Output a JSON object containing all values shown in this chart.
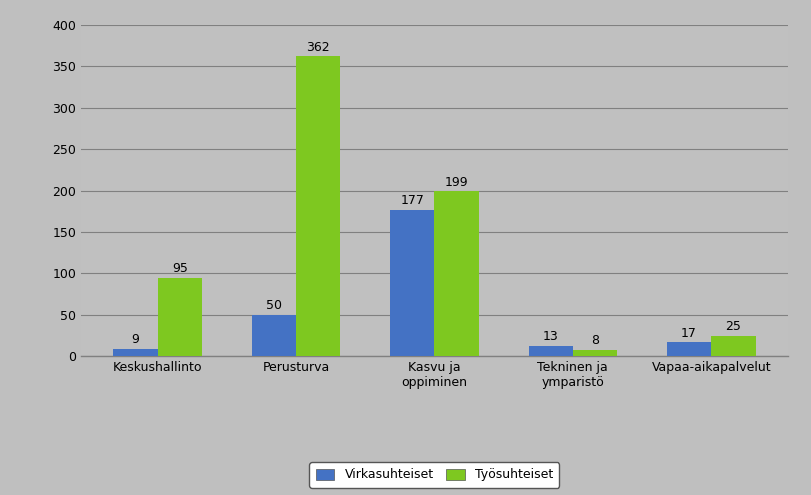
{
  "categories": [
    "Keskushallinto",
    "Perusturva",
    "Kasvu ja\noppiminen",
    "Tekninen ja\nymparistö",
    "Vapaa-aikapalvelut"
  ],
  "virkasuhteiset": [
    9,
    50,
    177,
    13,
    17
  ],
  "tyosuhteiset": [
    95,
    362,
    199,
    8,
    25
  ],
  "bar_color_virka": "#4472C4",
  "bar_color_tyos": "#7EC820",
  "background_color": "#BFBFBF",
  "plot_bg_color": "#C0C0C0",
  "ylim": [
    0,
    400
  ],
  "yticks": [
    0,
    50,
    100,
    150,
    200,
    250,
    300,
    350,
    400
  ],
  "bar_width": 0.32,
  "legend_virka": "Virkasuhteiset",
  "legend_tyos": "Työsuhteiset",
  "label_fontsize": 9,
  "tick_fontsize": 9,
  "legend_fontsize": 9
}
